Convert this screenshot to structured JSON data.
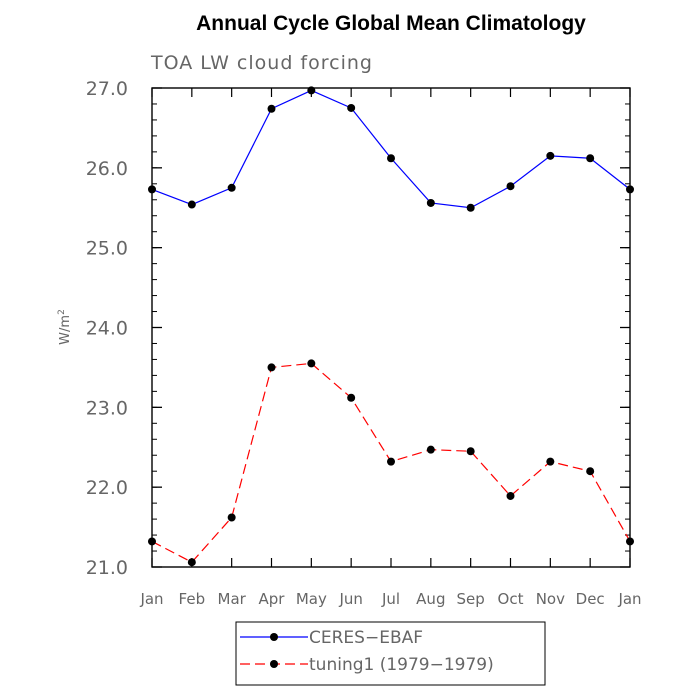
{
  "chart_data": {
    "type": "line",
    "title": "Annual Cycle Global Mean Climatology",
    "subtitle": "TOA LW cloud forcing",
    "ylabel_base": "W/m",
    "ylabel_sup": "2",
    "xlabel": "",
    "categories": [
      "Jan",
      "Feb",
      "Mar",
      "Apr",
      "May",
      "Jun",
      "Jul",
      "Aug",
      "Sep",
      "Oct",
      "Nov",
      "Dec",
      "Jan"
    ],
    "ylim": [
      21.0,
      27.0
    ],
    "ytick_values": [
      21.0,
      22.0,
      23.0,
      24.0,
      25.0,
      26.0,
      27.0
    ],
    "ytick_labels": [
      "21.0",
      "22.0",
      "23.0",
      "24.0",
      "25.0",
      "26.0",
      "27.0"
    ],
    "minor_ytick_step": 0.2,
    "grid": false,
    "legend_position": "bottom-center",
    "series": [
      {
        "name": "CERES−EBAF",
        "color": "#0000ff",
        "dash": "solid",
        "marker": "circle",
        "values": [
          25.73,
          25.54,
          25.75,
          26.74,
          26.97,
          26.75,
          26.12,
          25.56,
          25.5,
          25.77,
          26.15,
          26.12,
          25.73
        ]
      },
      {
        "name": "tuning1 (1979−1979)",
        "color": "#ff0000",
        "dash": "dashed",
        "marker": "circle",
        "values": [
          21.32,
          21.06,
          21.62,
          23.5,
          23.55,
          23.12,
          22.32,
          22.47,
          22.45,
          21.89,
          22.32,
          22.2,
          21.32
        ]
      }
    ]
  }
}
